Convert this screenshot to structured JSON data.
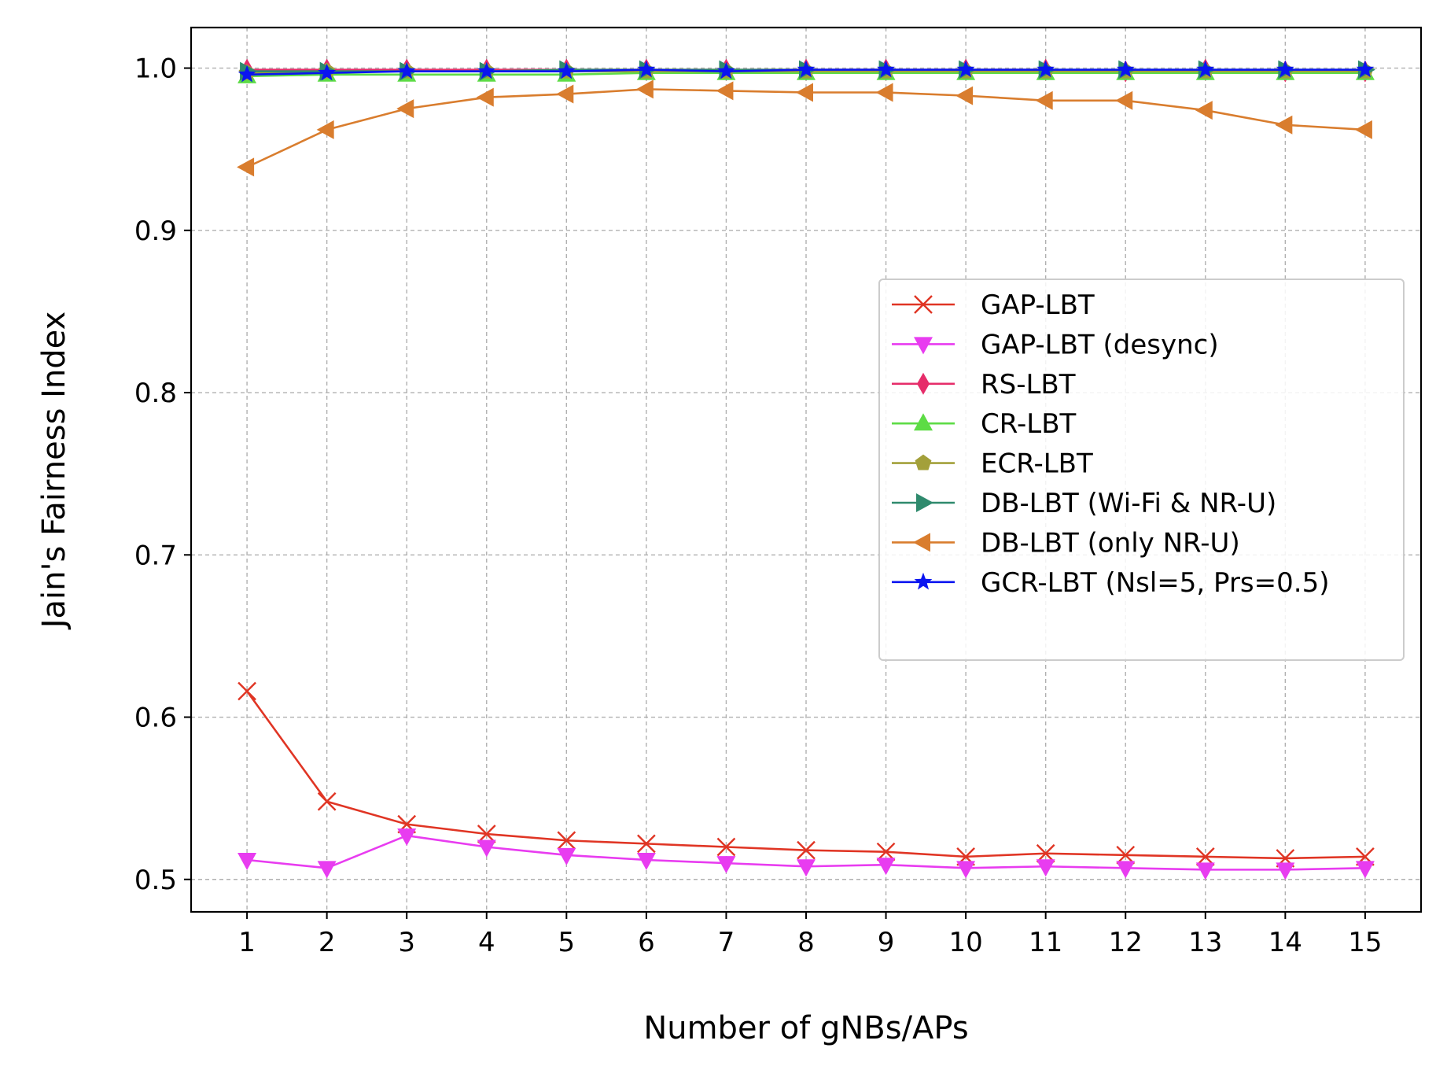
{
  "chart_data": {
    "type": "line",
    "title": "",
    "xlabel": "Number of gNBs/APs",
    "ylabel": "Jain's Fairness Index",
    "x": [
      1,
      2,
      3,
      4,
      5,
      6,
      7,
      8,
      9,
      10,
      11,
      12,
      13,
      14,
      15
    ],
    "xlim": [
      0.3,
      15.7
    ],
    "ylim": [
      0.48,
      1.025
    ],
    "yticks": [
      0.5,
      0.6,
      0.7,
      0.8,
      0.9,
      1.0
    ],
    "ytick_labels": [
      "0.5",
      "0.6",
      "0.7",
      "0.8",
      "0.9",
      "1.0"
    ],
    "xtick_labels": [
      "1",
      "2",
      "3",
      "4",
      "5",
      "6",
      "7",
      "8",
      "9",
      "10",
      "11",
      "12",
      "13",
      "14",
      "15"
    ],
    "grid": true,
    "legend_position": "center-right",
    "series": [
      {
        "name": "GAP-LBT",
        "color": "#e03524",
        "marker": "x",
        "values": [
          0.616,
          0.548,
          0.534,
          0.528,
          0.524,
          0.522,
          0.52,
          0.518,
          0.517,
          0.514,
          0.516,
          0.515,
          0.514,
          0.513,
          0.514
        ]
      },
      {
        "name": "GAP-LBT (desync)",
        "color": "#e83cf0",
        "marker": "triangle-down",
        "values": [
          0.512,
          0.507,
          0.527,
          0.52,
          0.515,
          0.512,
          0.51,
          0.508,
          0.509,
          0.507,
          0.508,
          0.507,
          0.506,
          0.506,
          0.507
        ]
      },
      {
        "name": "RS-LBT",
        "color": "#e62d6a",
        "marker": "thin-diamond",
        "values": [
          0.999,
          0.999,
          0.999,
          0.999,
          0.999,
          0.999,
          0.999,
          0.999,
          0.999,
          0.999,
          0.999,
          0.998,
          0.999,
          0.998,
          0.998
        ]
      },
      {
        "name": "CR-LBT",
        "color": "#5ddc45",
        "marker": "triangle-up",
        "values": [
          0.995,
          0.996,
          0.996,
          0.996,
          0.996,
          0.997,
          0.997,
          0.997,
          0.997,
          0.997,
          0.997,
          0.997,
          0.997,
          0.997,
          0.997
        ]
      },
      {
        "name": "ECR-LBT",
        "color": "#a3a03a",
        "marker": "pentagon",
        "values": [
          0.997,
          0.998,
          0.998,
          0.998,
          0.998,
          0.998,
          0.998,
          0.998,
          0.998,
          0.998,
          0.998,
          0.998,
          0.998,
          0.998,
          0.998
        ]
      },
      {
        "name": "DB-LBT (Wi-Fi & NR-U)",
        "color": "#2f8a6d",
        "marker": "triangle-right",
        "values": [
          0.998,
          0.998,
          0.998,
          0.998,
          0.999,
          0.999,
          0.999,
          0.999,
          0.999,
          0.999,
          0.999,
          0.999,
          0.999,
          0.999,
          0.999
        ]
      },
      {
        "name": "DB-LBT (only NR-U)",
        "color": "#d97d2e",
        "marker": "triangle-left",
        "values": [
          0.939,
          0.962,
          0.975,
          0.982,
          0.984,
          0.987,
          0.986,
          0.985,
          0.985,
          0.983,
          0.98,
          0.98,
          0.974,
          0.965,
          0.962
        ]
      },
      {
        "name": "GCR-LBT (Nsl=5, Prs=0.5)",
        "color": "#0a14f0",
        "marker": "star",
        "values": [
          0.996,
          0.997,
          0.998,
          0.998,
          0.998,
          0.999,
          0.998,
          0.999,
          0.999,
          0.999,
          0.999,
          0.999,
          0.999,
          0.999,
          0.999
        ]
      }
    ]
  }
}
